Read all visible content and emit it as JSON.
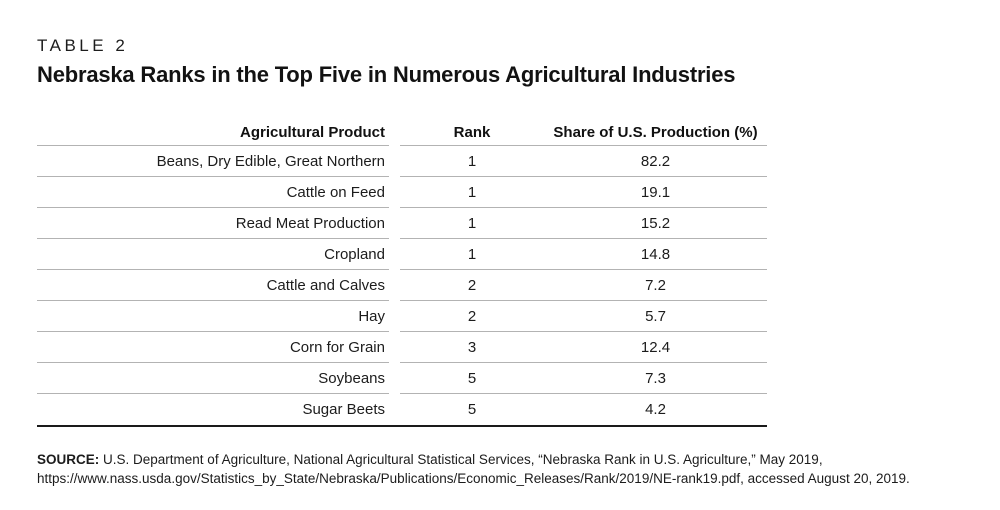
{
  "table_label": "TABLE 2",
  "title": "Nebraska Ranks in the Top Five in Numerous Agricultural Industries",
  "table": {
    "columns": {
      "product": "Agricultural Product",
      "rank": "Rank",
      "share": "Share of U.S. Production (%)"
    },
    "rows": [
      {
        "product": "Beans, Dry Edible, Great Northern",
        "rank": "1",
        "share": "82.2"
      },
      {
        "product": "Cattle on Feed",
        "rank": "1",
        "share": "19.1"
      },
      {
        "product": "Read Meat Production",
        "rank": "1",
        "share": "15.2"
      },
      {
        "product": "Cropland",
        "rank": "1",
        "share": "14.8"
      },
      {
        "product": "Cattle and Calves",
        "rank": "2",
        "share": "7.2"
      },
      {
        "product": "Hay",
        "rank": "2",
        "share": "5.7"
      },
      {
        "product": "Corn for Grain",
        "rank": "3",
        "share": "12.4"
      },
      {
        "product": "Soybeans",
        "rank": "5",
        "share": "7.3"
      },
      {
        "product": "Sugar Beets",
        "rank": "5",
        "share": "4.2"
      }
    ]
  },
  "source": {
    "label": "SOURCE:",
    "text": " U.S. Department of Agriculture, National Agricultural Statistical Services, “Nebraska Rank in U.S. Agriculture,” May 2019, https://www.nass.usda.gov/Statistics_by_State/Nebraska/Publications/Economic_Releases/Rank/2019/NE-rank19.pdf, accessed August 20, 2019."
  },
  "colors": {
    "text": "#1c1c1c",
    "divider": "#b3b3b3",
    "bottom_rule": "#1a1a1a",
    "background": "#ffffff"
  }
}
